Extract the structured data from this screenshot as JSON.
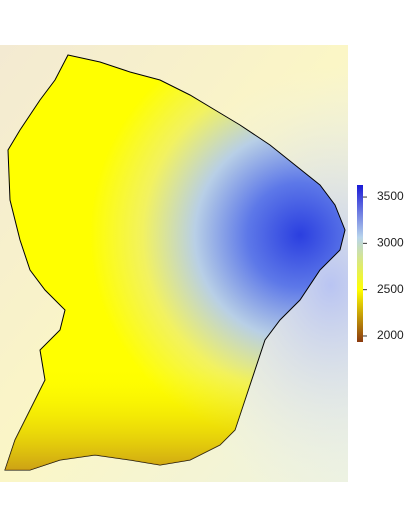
{
  "map": {
    "colorbar": {
      "lim": [
        1935,
        3630
      ],
      "ticks": [
        2000,
        2500,
        3000,
        3500
      ],
      "colors": [
        "#8b3a0f",
        "#ffff00",
        "#b8d4ec",
        "#1a1ad6"
      ]
    }
  }
}
